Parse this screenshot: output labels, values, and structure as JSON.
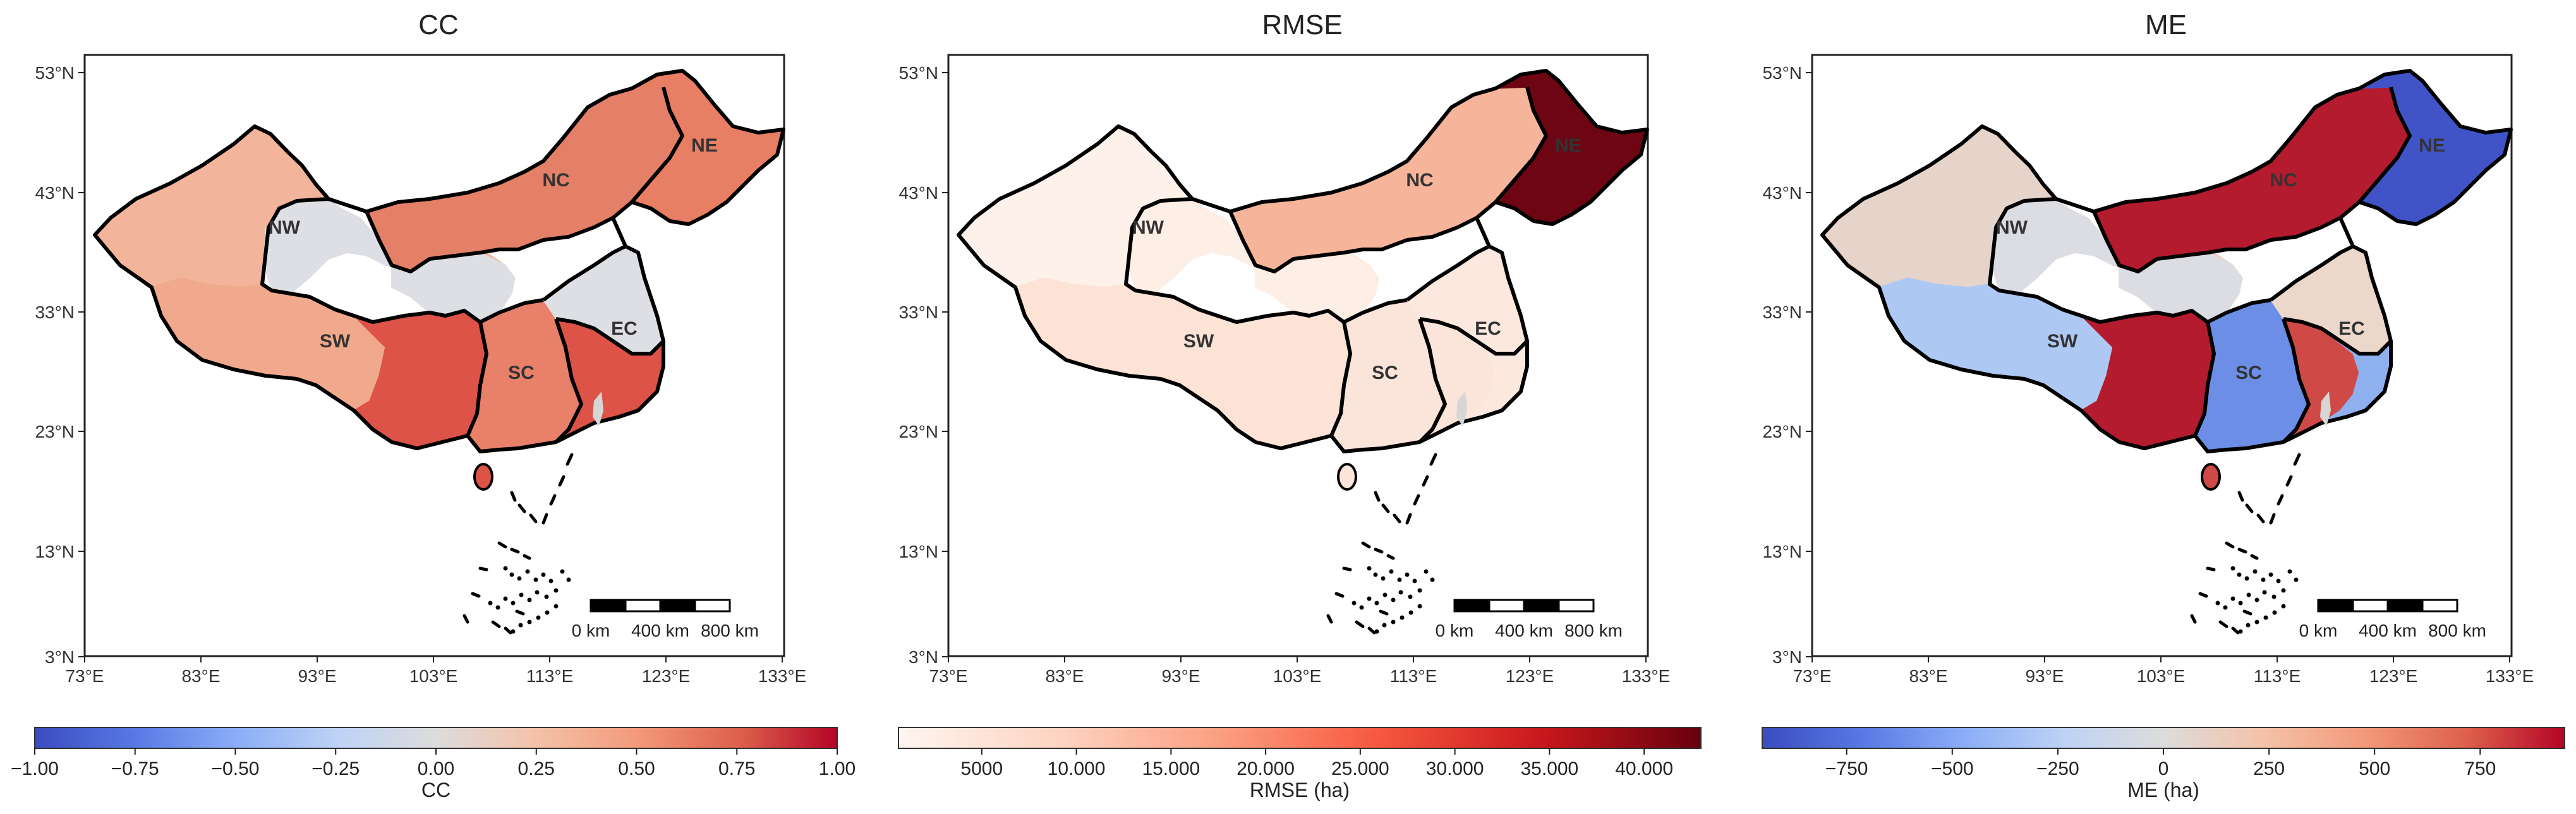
{
  "figure": {
    "panels": [
      {
        "id": "cc",
        "title": "CC",
        "colorbar": {
          "label": "CC",
          "ticks": [
            "−1.00",
            "−0.75",
            "−0.50",
            "−0.25",
            "0.00",
            "0.25",
            "0.50",
            "0.75",
            "1.00"
          ],
          "scale": "diverging"
        },
        "region_colors": {
          "NE": "#e87e64",
          "NC": "#e58068",
          "NW": "#f2b59b",
          "NW2": "#f2b59b",
          "CORE": "#dddfe4",
          "SW": "#f1a98d",
          "SWS": "#dd5348",
          "SC": "#e8806a",
          "SCS": "#dd5348",
          "EC": "#dddfe4",
          "ECS": "#dd5348"
        }
      },
      {
        "id": "rmse",
        "title": "RMSE",
        "colorbar": {
          "label": "RMSE (ha)",
          "ticks": [
            "5000",
            "10.000",
            "15.000",
            "20.000",
            "25.000",
            "30.000",
            "35.000",
            "40.000"
          ],
          "scale": "sequential"
        },
        "region_colors": {
          "NE": "#6d0513",
          "NC": "#f6b59b",
          "NW": "#fef1ea",
          "NW2": "#fee7dd",
          "CORE": "#fdeee6",
          "SW": "#fde3d6",
          "SWS": "#fde3d6",
          "SC": "#fbe4da",
          "SCS": "#fbe4da",
          "EC": "#fde8df",
          "ECS": "#fde8df"
        }
      },
      {
        "id": "me",
        "title": "ME",
        "colorbar": {
          "label": "ME (ha)",
          "ticks": [
            "−750",
            "−500",
            "−250",
            "0",
            "250",
            "500",
            "750"
          ],
          "scale": "diverging"
        },
        "region_colors": {
          "NE": "#4054c8",
          "NC": "#b41b2e",
          "NW": "#e6d3c9",
          "NW2": "#e6d3c9",
          "CORE": "#dcdde2",
          "SW": "#aec8f4",
          "SWS": "#b41b2e",
          "SC": "#6c8ee6",
          "SCS": "#cf4a47",
          "EC": "#ecd7cb",
          "ECS": "#8fb0ef"
        }
      }
    ],
    "region_labels": [
      "NE",
      "NC",
      "NW",
      "SW",
      "SC",
      "EC"
    ],
    "lat_ticks": [
      "53°N",
      "43°N",
      "33°N",
      "23°N",
      "13°N",
      "3°N"
    ],
    "lon_ticks": [
      "73°E",
      "83°E",
      "93°E",
      "103°E",
      "113°E",
      "123°E",
      "133°E"
    ],
    "scale_bar": {
      "labels": [
        "0 km",
        "400 km",
        "800 km"
      ]
    },
    "colors": {
      "taiwan": "#d6d6d6",
      "outline": "#000000",
      "diverging_low": "#3b4cc0",
      "diverging_mid": "#dddddd",
      "diverging_high": "#b40426"
    }
  }
}
